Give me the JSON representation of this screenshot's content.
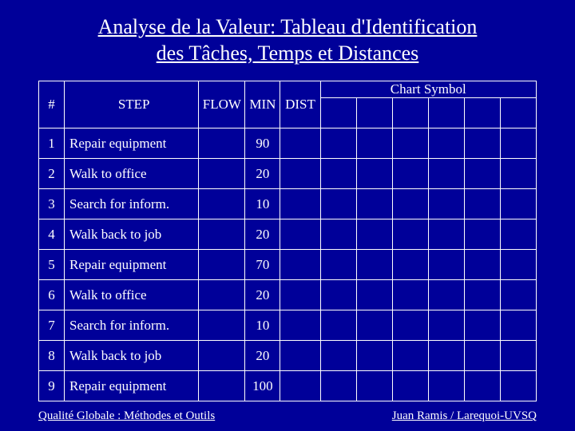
{
  "title_line1": "Analyse de la Valeur: Tableau d'Identification",
  "title_line2": "des Tâches, Temps et Distances",
  "headers": {
    "num": "#",
    "step": "STEP",
    "flow": "FLOW",
    "min": "MIN",
    "dist": "DIST",
    "chart_symbol": "Chart Symbol"
  },
  "rows": [
    {
      "n": "1",
      "step": "Repair equipment",
      "flow": "",
      "min": "90",
      "dist": ""
    },
    {
      "n": "2",
      "step": "Walk to office",
      "flow": "",
      "min": "20",
      "dist": ""
    },
    {
      "n": "3",
      "step": "Search for inform.",
      "flow": "",
      "min": "10",
      "dist": ""
    },
    {
      "n": "4",
      "step": "Walk back to job",
      "flow": "",
      "min": "20",
      "dist": ""
    },
    {
      "n": "5",
      "step": "Repair equipment",
      "flow": "",
      "min": "70",
      "dist": ""
    },
    {
      "n": "6",
      "step": "Walk to office",
      "flow": "",
      "min": "20",
      "dist": ""
    },
    {
      "n": "7",
      "step": "Search for inform.",
      "flow": "",
      "min": "10",
      "dist": ""
    },
    {
      "n": "8",
      "step": "Walk back to job",
      "flow": "",
      "min": "20",
      "dist": ""
    },
    {
      "n": "9",
      "step": "Repair equipment",
      "flow": "",
      "min": "100",
      "dist": ""
    }
  ],
  "footer": {
    "left": "Qualité Globale : Méthodes et Outils",
    "right": "Juan Ramis / Larequoi-UVSQ"
  },
  "colors": {
    "background": "#000099",
    "text": "#ffffff",
    "border": "#ffffff"
  }
}
